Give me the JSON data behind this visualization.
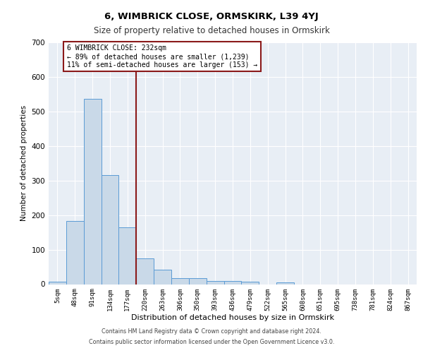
{
  "title": "6, WIMBRICK CLOSE, ORMSKIRK, L39 4YJ",
  "subtitle": "Size of property relative to detached houses in Ormskirk",
  "xlabel": "Distribution of detached houses by size in Ormskirk",
  "ylabel": "Number of detached properties",
  "bar_labels": [
    "5sqm",
    "48sqm",
    "91sqm",
    "134sqm",
    "177sqm",
    "220sqm",
    "263sqm",
    "306sqm",
    "350sqm",
    "393sqm",
    "436sqm",
    "479sqm",
    "522sqm",
    "565sqm",
    "608sqm",
    "651sqm",
    "695sqm",
    "738sqm",
    "781sqm",
    "824sqm",
    "867sqm"
  ],
  "bar_values": [
    7,
    183,
    537,
    316,
    165,
    75,
    42,
    18,
    18,
    10,
    10,
    7,
    0,
    5,
    0,
    0,
    0,
    0,
    0,
    0,
    0
  ],
  "bar_color": "#c9d9e8",
  "bar_edge_color": "#5b9bd5",
  "annotation_line1": "6 WIMBRICK CLOSE: 232sqm",
  "annotation_line2": "← 89% of detached houses are smaller (1,239)",
  "annotation_line3": "11% of semi-detached houses are larger (153) →",
  "vline_color": "#8b1a1a",
  "ylim": [
    0,
    700
  ],
  "yticks": [
    0,
    100,
    200,
    300,
    400,
    500,
    600,
    700
  ],
  "footer_line1": "Contains HM Land Registry data © Crown copyright and database right 2024.",
  "footer_line2": "Contains public sector information licensed under the Open Government Licence v3.0.",
  "plot_bg_color": "#e8eef5",
  "fig_bg_color": "#ffffff"
}
